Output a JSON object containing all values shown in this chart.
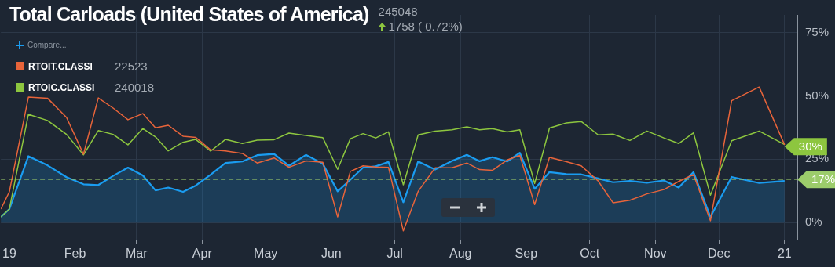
{
  "chart_data": {
    "type": "line",
    "title": "Total Carloads (United States of America)",
    "subtitle": "245048",
    "annotations": [
      "1758 ( 0.72%)",
      "Compare...",
      "22523",
      "240018",
      {
        "text": "30%",
        "x": "2021-01-01",
        "y": 30
      }
    ],
    "x": [
      "2019-12-28",
      "2020-01-01",
      "2020-01-10",
      "2020-01-19",
      "2020-01-28",
      "2020-02-05",
      "2020-02-12",
      "2020-02-19",
      "2020-02-26",
      "2020-03-04",
      "2020-03-10",
      "2020-03-16",
      "2020-03-23",
      "2020-03-29",
      "2020-04-05",
      "2020-04-12",
      "2020-04-20",
      "2020-04-27",
      "2020-05-05",
      "2020-05-12",
      "2020-05-20",
      "2020-05-28",
      "2020-06-04",
      "2020-06-10",
      "2020-06-16",
      "2020-06-22",
      "2020-06-28",
      "2020-07-05",
      "2020-07-12",
      "2020-07-20",
      "2020-07-28",
      "2020-08-04",
      "2020-08-10",
      "2020-08-16",
      "2020-08-23",
      "2020-08-29",
      "2020-09-05",
      "2020-09-12",
      "2020-09-20",
      "2020-09-27",
      "2020-10-05",
      "2020-10-12",
      "2020-10-20",
      "2020-10-28",
      "2020-11-05",
      "2020-11-12",
      "2020-11-19",
      "2020-11-27",
      "2020-12-07",
      "2020-12-20",
      "2021-01-01"
    ],
    "series": [
      {
        "type": "area",
        "color": "#1a9cf0",
        "values": [
          2.2,
          5.3,
          26.2,
          22.6,
          17.9,
          15.1,
          14.8,
          18.4,
          21.7,
          18.6,
          12.7,
          13.8,
          12.1,
          14.6,
          18.9,
          23.5,
          24.1,
          26.6,
          27.1,
          22.4,
          26.7,
          23.2,
          12.3,
          16.9,
          21.7,
          22.2,
          23.9,
          8,
          24.1,
          20.9,
          24.3,
          26.7,
          24.2,
          25.8,
          24.1,
          27.5,
          13.3,
          19.9,
          19.1,
          19.0,
          17.4,
          15.9,
          16.4,
          15.7,
          16.6,
          13.8,
          19.9,
          2.2,
          18.0,
          15.6,
          16.4
        ]
      },
      {
        "name": "RTOIT.CLASSI",
        "color": "#e8643a",
        "values": [
          5.3,
          12.1,
          49.5,
          49.1,
          41.5,
          27.0,
          49.2,
          45.2,
          40.6,
          43.0,
          37.4,
          38.4,
          34.1,
          33.6,
          28.7,
          28.3,
          27.3,
          23.5,
          25.5,
          21.8,
          24.3,
          23.8,
          2.2,
          20.2,
          22.4,
          21.9,
          21.8,
          -3.3,
          12.3,
          21.6,
          21.6,
          23.5,
          20.9,
          20.6,
          24.7,
          26.5,
          7.1,
          25.7,
          24.0,
          22.4,
          16.4,
          7.8,
          8.8,
          11.3,
          13.0,
          16.2,
          18.9,
          0.7,
          48.1,
          53.5,
          30.7
        ]
      },
      {
        "name": "RTOIC.CLASSI",
        "color": "#8dc63f",
        "values": [
          2.2,
          5.3,
          42.7,
          40.3,
          34.8,
          26.7,
          36.3,
          34.8,
          30.7,
          37.1,
          33.8,
          28.3,
          31.7,
          32.8,
          28.2,
          32.8,
          31.2,
          32.5,
          32.7,
          35.3,
          34.4,
          33.5,
          21.0,
          33.1,
          35.1,
          33.4,
          35.8,
          14.9,
          34.6,
          36.1,
          36.6,
          37.8,
          36.6,
          37.1,
          35.8,
          36.6,
          15.4,
          37.3,
          39.3,
          39.9,
          34.6,
          34.9,
          32.4,
          36.1,
          33.4,
          31.2,
          35.4,
          10.8,
          32.3,
          36.1,
          30.8
        ]
      }
    ],
    "xlim": [
      "2019-12-28",
      "2021-01-07"
    ],
    "xticks": [
      {
        "value": "2020-01-01",
        "label": "19"
      },
      {
        "value": "2020-02-01",
        "label": "Feb"
      },
      {
        "value": "2020-03-01",
        "label": "Mar"
      },
      {
        "value": "2020-04-01",
        "label": "Apr"
      },
      {
        "value": "2020-05-01",
        "label": "May"
      },
      {
        "value": "2020-06-01",
        "label": "Jun"
      },
      {
        "value": "2020-07-01",
        "label": "Jul"
      },
      {
        "value": "2020-08-01",
        "label": "Aug"
      },
      {
        "value": "2020-09-01",
        "label": "Sep"
      },
      {
        "value": "2020-10-01",
        "label": "Oct"
      },
      {
        "value": "2020-11-01",
        "label": "Nov"
      },
      {
        "value": "2020-12-01",
        "label": "Dec"
      },
      {
        "value": "2021-01-01",
        "label": "21"
      }
    ],
    "ylim": [
      -7,
      82
    ],
    "yticks": [
      {
        "value": 0,
        "label": "0%"
      },
      {
        "value": 25,
        "label": "25%"
      },
      {
        "value": 50,
        "label": "50%"
      },
      {
        "value": 75,
        "label": "75%"
      }
    ],
    "ref_lines": [
      {
        "axis": "y",
        "value": 17,
        "label": "17%",
        "color": "#9ccc6b",
        "line_style": "dashed"
      }
    ],
    "grid": true,
    "legend": "top left",
    "marker": "none",
    "line_style": "solid"
  }
}
